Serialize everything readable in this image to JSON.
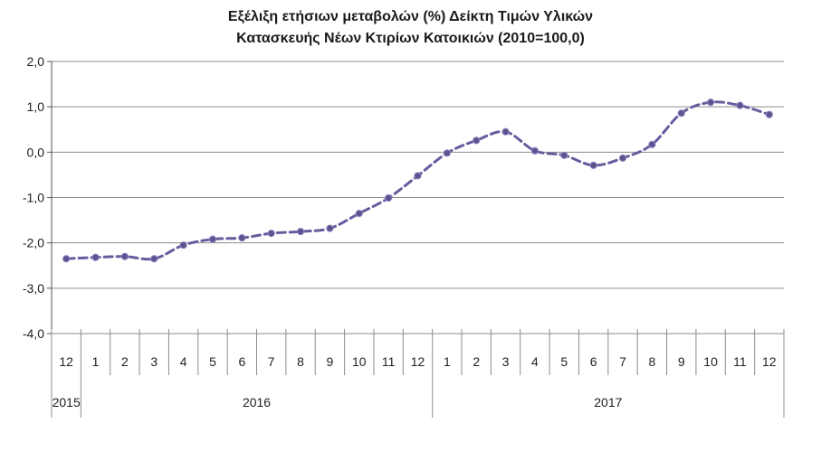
{
  "chart_data": {
    "type": "line",
    "title_line1": "Εξέλιξη ετήσιων μεταβολών (%) Δείκτη Τιμών Υλικών",
    "title_line2": "Κατασκευής Νέων Κτιρίων Κατοικιών (2010=100,0)",
    "categories": [
      "12",
      "1",
      "2",
      "3",
      "4",
      "5",
      "6",
      "7",
      "8",
      "9",
      "10",
      "11",
      "12",
      "1",
      "2",
      "3",
      "4",
      "5",
      "6",
      "7",
      "8",
      "9",
      "10",
      "11",
      "12"
    ],
    "years": [
      {
        "label": "2015",
        "from": 0,
        "to": 0
      },
      {
        "label": "2016",
        "from": 1,
        "to": 12
      },
      {
        "label": "2017",
        "from": 13,
        "to": 24
      }
    ],
    "series": [
      {
        "values": [
          -2.35,
          -2.32,
          -2.3,
          -2.35,
          -2.05,
          -1.92,
          -1.89,
          -1.79,
          -1.75,
          -1.68,
          -1.35,
          -1.01,
          -0.52,
          -0.02,
          0.26,
          0.45,
          0.03,
          -0.07,
          -0.29,
          -0.13,
          0.17,
          0.86,
          1.1,
          1.03,
          0.83
        ],
        "color": "#6a5a9e",
        "marker_color": "#5c5490"
      }
    ],
    "yticks": [
      "2,0",
      "1,0",
      "0,0",
      "-1,0",
      "-2,0",
      "-3,0",
      "-4,0"
    ],
    "ytick_values": [
      2,
      1,
      0,
      -1,
      -2,
      -3,
      -4
    ],
    "ylim": [
      -4,
      2
    ],
    "grid": true,
    "legend": "none"
  }
}
